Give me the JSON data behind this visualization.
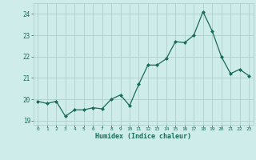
{
  "x": [
    0,
    1,
    2,
    3,
    4,
    5,
    6,
    7,
    8,
    9,
    10,
    11,
    12,
    13,
    14,
    15,
    16,
    17,
    18,
    19,
    20,
    21,
    22,
    23
  ],
  "y": [
    19.9,
    19.8,
    19.9,
    19.2,
    19.5,
    19.5,
    19.6,
    19.55,
    20.0,
    20.2,
    19.7,
    20.7,
    21.6,
    21.6,
    21.9,
    22.7,
    22.65,
    23.0,
    24.1,
    23.2,
    22.0,
    21.2,
    21.4,
    21.1
  ],
  "xlabel": "Humidex (Indice chaleur)",
  "bg_color": "#ceecea",
  "grid_color": "#b0cece",
  "line_color": "#1a6b5a",
  "marker_color": "#1a6b5a",
  "tick_color": "#1a6b5a",
  "label_color": "#1a6b5a",
  "ylim": [
    18.8,
    24.5
  ],
  "yticks": [
    19,
    20,
    21,
    22,
    23,
    24
  ],
  "xticks": [
    0,
    1,
    2,
    3,
    4,
    5,
    6,
    7,
    8,
    9,
    10,
    11,
    12,
    13,
    14,
    15,
    16,
    17,
    18,
    19,
    20,
    21,
    22,
    23
  ]
}
